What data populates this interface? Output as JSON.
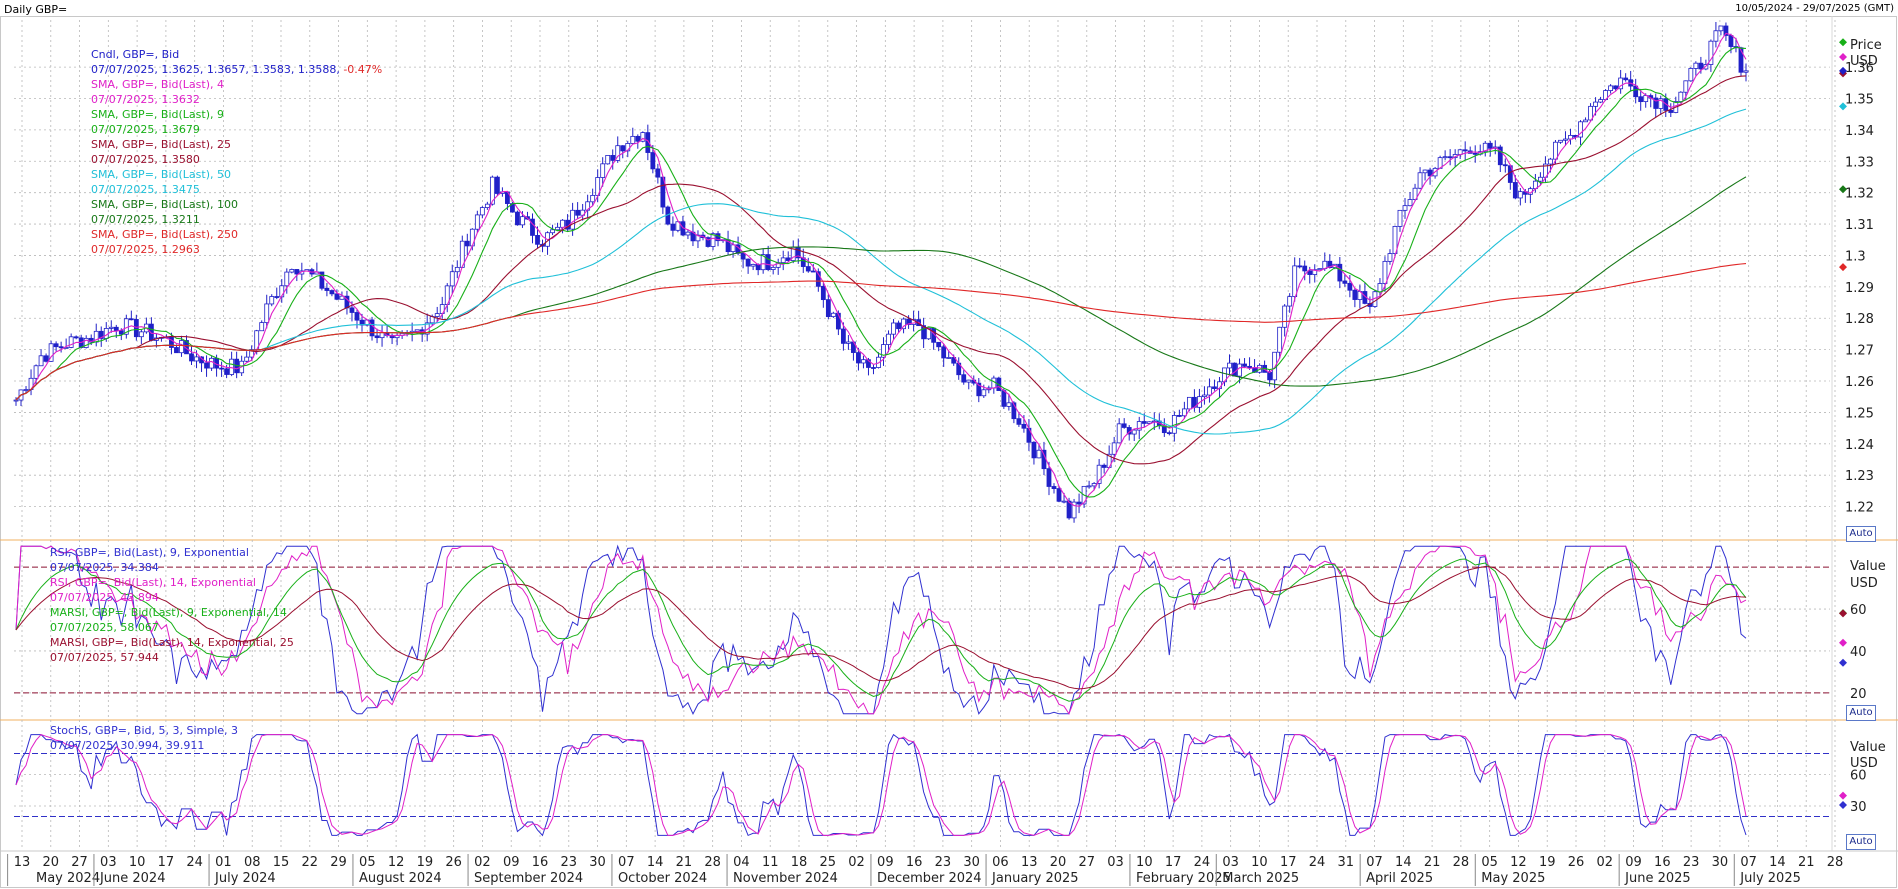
{
  "window": {
    "title": "Daily GBP=",
    "range": "10/05/2024 - 29/07/2025 (GMT)"
  },
  "colors": {
    "candle": "#2020c8",
    "sma4": "#e020c8",
    "sma9": "#18b018",
    "sma25": "#9a1030",
    "sma50": "#20c0d8",
    "sma100": "#187818",
    "sma250": "#e02828",
    "rsi9": "#3030d0",
    "rsi14": "#e020c8",
    "marsi9": "#18b018",
    "marsi14": "#9a1030",
    "stoch_k": "#3030d0",
    "stoch_d": "#e020c8",
    "grid": "#b8b8b8",
    "panel_border": "#f0b060"
  },
  "price_panel": {
    "axis_header": "Price",
    "axis_unit": "USD",
    "auto_label": "Auto",
    "legend": [
      {
        "label": "Cndl, GBP=, Bid",
        "value": "07/07/2025, 1.3625, 1.3657, 1.3583, 1.3588, ",
        "change": "-0.47%",
        "color": "#2020c8"
      },
      {
        "label": "SMA, GBP=, Bid(Last),  4",
        "value": "07/07/2025, 1.3632",
        "color": "#e020c8"
      },
      {
        "label": "SMA, GBP=, Bid(Last),  9",
        "value": "07/07/2025, 1.3679",
        "color": "#18b018"
      },
      {
        "label": "SMA, GBP=, Bid(Last),  25",
        "value": "07/07/2025, 1.3580",
        "color": "#9a1030"
      },
      {
        "label": "SMA, GBP=, Bid(Last),  50",
        "value": "07/07/2025, 1.3475",
        "color": "#20c0d8"
      },
      {
        "label": "SMA, GBP=, Bid(Last),  100",
        "value": "07/07/2025, 1.3211",
        "color": "#187818"
      },
      {
        "label": "SMA, GBP=, Bid(Last),  250",
        "value": "07/07/2025, 1.2963",
        "color": "#e02828"
      }
    ]
  },
  "rsi_panel": {
    "axis_header": "Value",
    "axis_unit": "USD",
    "auto_label": "Auto",
    "legend": [
      {
        "label": "RSI, GBP=, Bid(Last),  9, Exponential",
        "value": "07/07/2025, 34.384",
        "color": "#3030d0"
      },
      {
        "label": "RSI, GBP=, Bid(Last),  14, Exponential",
        "value": "07/07/2025, 43.894",
        "color": "#e020c8"
      },
      {
        "label": "MARSI, GBP=, Bid(Last),  9, Exponential, 14",
        "value": "07/07/2025, 58.067",
        "color": "#18b018"
      },
      {
        "label": "MARSI, GBP=, Bid(Last),  14, Exponential, 25",
        "value": "07/07/2025, 57.944",
        "color": "#9a1030"
      }
    ]
  },
  "stoch_panel": {
    "axis_header": "Value",
    "axis_unit": "USD",
    "auto_label": "Auto",
    "legend": [
      {
        "label": "StochS, GBP=, Bid,  5, 3, Simple, 3",
        "value": "07/07/2025, 30.994, 39.911",
        "color": "#3030d0"
      }
    ]
  },
  "chart_data": [
    {
      "type": "line",
      "title": "Daily GBP=",
      "ylabel": "Price USD",
      "ylim": [
        1.21,
        1.375
      ],
      "yticks": [
        "1.22",
        "1.23",
        "1.24",
        "1.25",
        "1.26",
        "1.27",
        "1.28",
        "1.29",
        "1.3",
        "1.31",
        "1.32",
        "1.33",
        "1.34",
        "1.35",
        "1.36"
      ],
      "x_day_ticks": [
        "13",
        "20",
        "27",
        "03",
        "10",
        "17",
        "24",
        "01",
        "08",
        "15",
        "22",
        "29",
        "05",
        "12",
        "19",
        "26",
        "02",
        "09",
        "16",
        "23",
        "30",
        "07",
        "14",
        "21",
        "28",
        "04",
        "11",
        "18",
        "25",
        "02",
        "09",
        "16",
        "23",
        "30",
        "06",
        "13",
        "20",
        "27",
        "03",
        "10",
        "17",
        "24",
        "03",
        "10",
        "17",
        "24",
        "31",
        "07",
        "14",
        "21",
        "28",
        "05",
        "12",
        "19",
        "26",
        "02",
        "09",
        "16",
        "23",
        "30",
        "07",
        "14",
        "21",
        "28"
      ],
      "x_month_ticks": [
        "May 2024",
        "June 2024",
        "July 2024",
        "August 2024",
        "September 2024",
        "October 2024",
        "November 2024",
        "December 2024",
        "January 2025",
        "February 2025",
        "March 2025",
        "April 2025",
        "May 2025",
        "June 2025",
        "July 2025"
      ],
      "close_weekly": [
        1.254,
        1.268,
        1.272,
        1.274,
        1.278,
        1.276,
        1.273,
        1.268,
        1.265,
        1.264,
        1.283,
        1.298,
        1.292,
        1.285,
        1.278,
        1.271,
        1.276,
        1.285,
        1.306,
        1.322,
        1.312,
        1.305,
        1.31,
        1.322,
        1.335,
        1.34,
        1.312,
        1.307,
        1.305,
        1.298,
        1.298,
        1.302,
        1.29,
        1.272,
        1.262,
        1.276,
        1.278,
        1.268,
        1.258,
        1.258,
        1.248,
        1.232,
        1.218,
        1.228,
        1.244,
        1.248,
        1.246,
        1.254,
        1.262,
        1.266,
        1.262,
        1.294,
        1.298,
        1.292,
        1.282,
        1.308,
        1.326,
        1.33,
        1.335,
        1.332,
        1.318,
        1.33,
        1.338,
        1.35,
        1.356,
        1.351,
        1.348,
        1.359,
        1.371,
        1.3588
      ],
      "series": [
        {
          "name": "SMA 4",
          "last": 1.3632
        },
        {
          "name": "SMA 9",
          "last": 1.3679
        },
        {
          "name": "SMA 25",
          "last": 1.358
        },
        {
          "name": "SMA 50",
          "last": 1.3475
        },
        {
          "name": "SMA 100",
          "last": 1.3211
        },
        {
          "name": "SMA 250",
          "last": 1.2963
        }
      ],
      "last_close": {
        "date": "07/07/2025",
        "open": 1.3625,
        "high": 1.3657,
        "low": 1.3583,
        "close": 1.3588,
        "change": "-0.47%"
      }
    },
    {
      "type": "line",
      "ylabel": "Value USD",
      "ylim": [
        8,
        92
      ],
      "yticks": [
        "20",
        "40",
        "60"
      ],
      "reference_lines": [
        80,
        20
      ],
      "series": [
        {
          "name": "RSI 9",
          "last": 34.384
        },
        {
          "name": "RSI 14",
          "last": 43.894
        },
        {
          "name": "MARSI 9",
          "last": 58.067
        },
        {
          "name": "MARSI 14",
          "last": 57.944
        }
      ]
    },
    {
      "type": "line",
      "ylabel": "Value USD",
      "ylim": [
        -10,
        110
      ],
      "yticks": [
        "30",
        "60"
      ],
      "reference_lines": [
        80,
        20
      ],
      "series": [
        {
          "name": "StochS %K",
          "last": 30.994
        },
        {
          "name": "StochS %D",
          "last": 39.911
        }
      ]
    }
  ]
}
